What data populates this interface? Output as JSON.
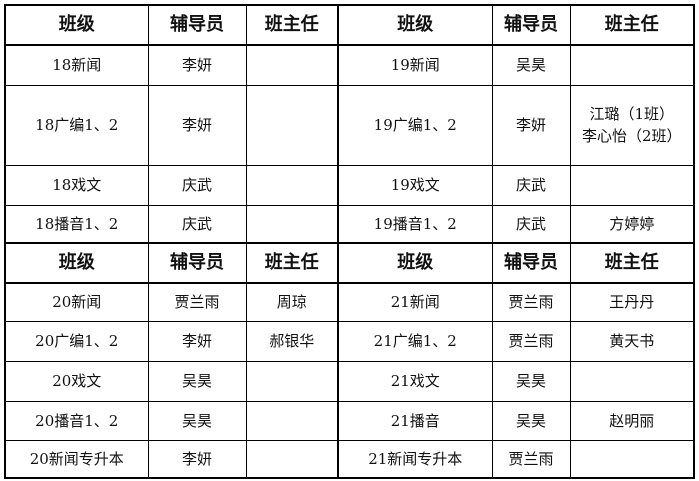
{
  "sections": [
    {
      "headers": [
        "班级",
        "辅导员",
        "班主任",
        "班级",
        "辅导员",
        "班主任"
      ],
      "rows": [
        [
          "18新闻",
          "李妍",
          "",
          "19新闻",
          "吴昊",
          ""
        ],
        [
          "18广编1、2",
          "李妍",
          "",
          "19广编1、2",
          "李妍",
          "江璐（1班）\n李心怡（2班）"
        ],
        [
          "18戏文",
          "庆武",
          "",
          "19戏文",
          "庆武",
          ""
        ],
        [
          "18播音1、2",
          "庆武",
          "",
          "19播音1、2",
          "庆武",
          "方婷婷"
        ]
      ]
    },
    {
      "headers": [
        "班级",
        "辅导员",
        "班主任",
        "班级",
        "辅导员",
        "班主任"
      ],
      "rows": [
        [
          "20新闻",
          "贾兰雨",
          "周琼",
          "21新闻",
          "贾兰雨",
          "王丹丹"
        ],
        [
          "20广编1、2",
          "李妍",
          "郝银华",
          "21广编1、2",
          "贾兰雨",
          "黄天书"
        ],
        [
          "20戏文",
          "吴昊",
          "",
          "21戏文",
          "吴昊",
          ""
        ],
        [
          "20播音1、2",
          "吴昊",
          "",
          "21播音",
          "吴昊",
          "赵明丽"
        ],
        [
          "20新闻专升本",
          "李妍",
          "",
          "21新闻专升本",
          "贾兰雨",
          ""
        ]
      ]
    }
  ]
}
